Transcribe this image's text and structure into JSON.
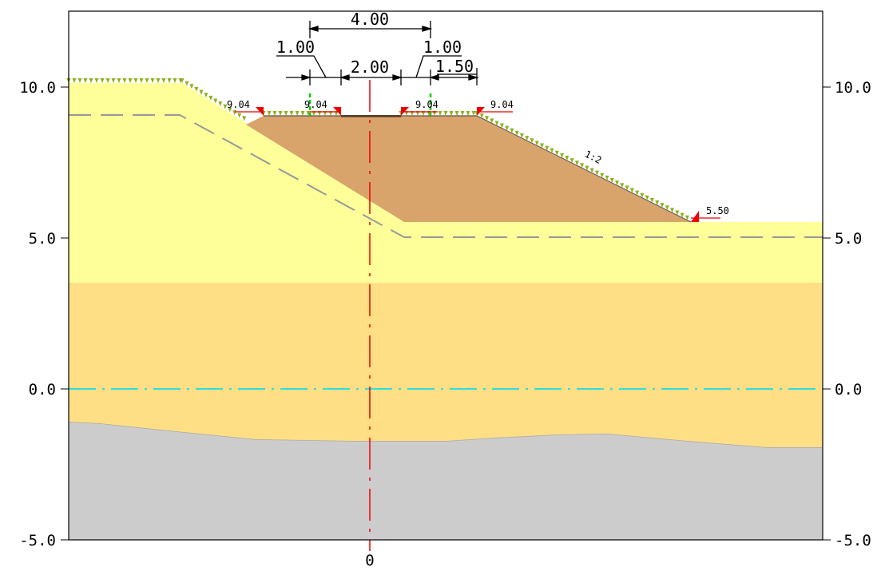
{
  "axis": {
    "y_min": -5.0,
    "y_max": 12.0,
    "left_ticks": [
      "10.0",
      "5.0",
      "0.0",
      "-5.0"
    ],
    "right_ticks": [
      "10.0",
      "5.0",
      "0.0",
      "-5.0"
    ],
    "tick_values": [
      10.0,
      5.0,
      0.0,
      -5.0
    ],
    "x_origin_label": "0"
  },
  "dimensions": {
    "total_width": "4.00",
    "left_shoulder": "1.00",
    "carriageway": "2.00",
    "right_shoulder": "1.00",
    "right_berm": "1.50"
  },
  "elevations": {
    "left_edge": "9.04",
    "left_inner": "9.04",
    "right_inner": "9.04",
    "right_edge": "9.04",
    "toe_right": "5.50"
  },
  "slope_label": "1:2",
  "colors": {
    "topsoil": "#ffff99",
    "subsoil": "#ffdf85",
    "bedrock": "#cccccc",
    "embankment": "#d9a46c",
    "water_line": "#33dddd",
    "axis_line": "#ee0000",
    "grass": "#8fb020",
    "marker_green": "#00cc00",
    "dashed_line": "#999999"
  }
}
